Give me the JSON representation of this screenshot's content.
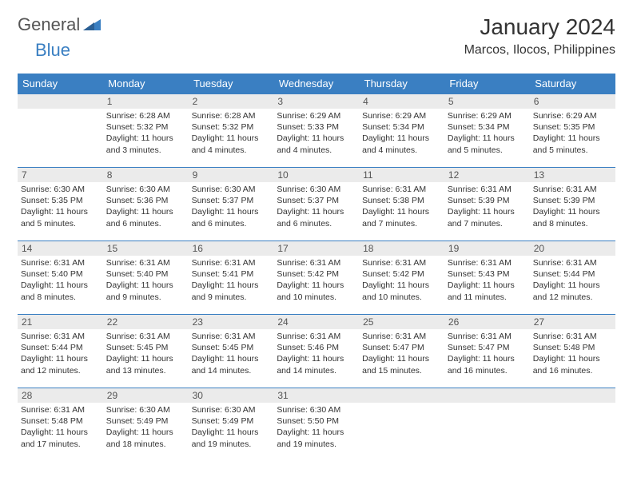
{
  "brand": {
    "part1": "General",
    "part2": "Blue"
  },
  "title": "January 2024",
  "location": "Marcos, Ilocos, Philippines",
  "day_headers": [
    "Sunday",
    "Monday",
    "Tuesday",
    "Wednesday",
    "Thursday",
    "Friday",
    "Saturday"
  ],
  "colors": {
    "header_bg": "#3a7fc2",
    "daynum_bg": "#ebebeb",
    "border": "#3a7fc2"
  },
  "weeks": [
    [
      {
        "n": "",
        "sunrise": "",
        "sunset": "",
        "daylight": ""
      },
      {
        "n": "1",
        "sunrise": "Sunrise: 6:28 AM",
        "sunset": "Sunset: 5:32 PM",
        "daylight": "Daylight: 11 hours and 3 minutes."
      },
      {
        "n": "2",
        "sunrise": "Sunrise: 6:28 AM",
        "sunset": "Sunset: 5:32 PM",
        "daylight": "Daylight: 11 hours and 4 minutes."
      },
      {
        "n": "3",
        "sunrise": "Sunrise: 6:29 AM",
        "sunset": "Sunset: 5:33 PM",
        "daylight": "Daylight: 11 hours and 4 minutes."
      },
      {
        "n": "4",
        "sunrise": "Sunrise: 6:29 AM",
        "sunset": "Sunset: 5:34 PM",
        "daylight": "Daylight: 11 hours and 4 minutes."
      },
      {
        "n": "5",
        "sunrise": "Sunrise: 6:29 AM",
        "sunset": "Sunset: 5:34 PM",
        "daylight": "Daylight: 11 hours and 5 minutes."
      },
      {
        "n": "6",
        "sunrise": "Sunrise: 6:29 AM",
        "sunset": "Sunset: 5:35 PM",
        "daylight": "Daylight: 11 hours and 5 minutes."
      }
    ],
    [
      {
        "n": "7",
        "sunrise": "Sunrise: 6:30 AM",
        "sunset": "Sunset: 5:35 PM",
        "daylight": "Daylight: 11 hours and 5 minutes."
      },
      {
        "n": "8",
        "sunrise": "Sunrise: 6:30 AM",
        "sunset": "Sunset: 5:36 PM",
        "daylight": "Daylight: 11 hours and 6 minutes."
      },
      {
        "n": "9",
        "sunrise": "Sunrise: 6:30 AM",
        "sunset": "Sunset: 5:37 PM",
        "daylight": "Daylight: 11 hours and 6 minutes."
      },
      {
        "n": "10",
        "sunrise": "Sunrise: 6:30 AM",
        "sunset": "Sunset: 5:37 PM",
        "daylight": "Daylight: 11 hours and 6 minutes."
      },
      {
        "n": "11",
        "sunrise": "Sunrise: 6:31 AM",
        "sunset": "Sunset: 5:38 PM",
        "daylight": "Daylight: 11 hours and 7 minutes."
      },
      {
        "n": "12",
        "sunrise": "Sunrise: 6:31 AM",
        "sunset": "Sunset: 5:39 PM",
        "daylight": "Daylight: 11 hours and 7 minutes."
      },
      {
        "n": "13",
        "sunrise": "Sunrise: 6:31 AM",
        "sunset": "Sunset: 5:39 PM",
        "daylight": "Daylight: 11 hours and 8 minutes."
      }
    ],
    [
      {
        "n": "14",
        "sunrise": "Sunrise: 6:31 AM",
        "sunset": "Sunset: 5:40 PM",
        "daylight": "Daylight: 11 hours and 8 minutes."
      },
      {
        "n": "15",
        "sunrise": "Sunrise: 6:31 AM",
        "sunset": "Sunset: 5:40 PM",
        "daylight": "Daylight: 11 hours and 9 minutes."
      },
      {
        "n": "16",
        "sunrise": "Sunrise: 6:31 AM",
        "sunset": "Sunset: 5:41 PM",
        "daylight": "Daylight: 11 hours and 9 minutes."
      },
      {
        "n": "17",
        "sunrise": "Sunrise: 6:31 AM",
        "sunset": "Sunset: 5:42 PM",
        "daylight": "Daylight: 11 hours and 10 minutes."
      },
      {
        "n": "18",
        "sunrise": "Sunrise: 6:31 AM",
        "sunset": "Sunset: 5:42 PM",
        "daylight": "Daylight: 11 hours and 10 minutes."
      },
      {
        "n": "19",
        "sunrise": "Sunrise: 6:31 AM",
        "sunset": "Sunset: 5:43 PM",
        "daylight": "Daylight: 11 hours and 11 minutes."
      },
      {
        "n": "20",
        "sunrise": "Sunrise: 6:31 AM",
        "sunset": "Sunset: 5:44 PM",
        "daylight": "Daylight: 11 hours and 12 minutes."
      }
    ],
    [
      {
        "n": "21",
        "sunrise": "Sunrise: 6:31 AM",
        "sunset": "Sunset: 5:44 PM",
        "daylight": "Daylight: 11 hours and 12 minutes."
      },
      {
        "n": "22",
        "sunrise": "Sunrise: 6:31 AM",
        "sunset": "Sunset: 5:45 PM",
        "daylight": "Daylight: 11 hours and 13 minutes."
      },
      {
        "n": "23",
        "sunrise": "Sunrise: 6:31 AM",
        "sunset": "Sunset: 5:45 PM",
        "daylight": "Daylight: 11 hours and 14 minutes."
      },
      {
        "n": "24",
        "sunrise": "Sunrise: 6:31 AM",
        "sunset": "Sunset: 5:46 PM",
        "daylight": "Daylight: 11 hours and 14 minutes."
      },
      {
        "n": "25",
        "sunrise": "Sunrise: 6:31 AM",
        "sunset": "Sunset: 5:47 PM",
        "daylight": "Daylight: 11 hours and 15 minutes."
      },
      {
        "n": "26",
        "sunrise": "Sunrise: 6:31 AM",
        "sunset": "Sunset: 5:47 PM",
        "daylight": "Daylight: 11 hours and 16 minutes."
      },
      {
        "n": "27",
        "sunrise": "Sunrise: 6:31 AM",
        "sunset": "Sunset: 5:48 PM",
        "daylight": "Daylight: 11 hours and 16 minutes."
      }
    ],
    [
      {
        "n": "28",
        "sunrise": "Sunrise: 6:31 AM",
        "sunset": "Sunset: 5:48 PM",
        "daylight": "Daylight: 11 hours and 17 minutes."
      },
      {
        "n": "29",
        "sunrise": "Sunrise: 6:30 AM",
        "sunset": "Sunset: 5:49 PM",
        "daylight": "Daylight: 11 hours and 18 minutes."
      },
      {
        "n": "30",
        "sunrise": "Sunrise: 6:30 AM",
        "sunset": "Sunset: 5:49 PM",
        "daylight": "Daylight: 11 hours and 19 minutes."
      },
      {
        "n": "31",
        "sunrise": "Sunrise: 6:30 AM",
        "sunset": "Sunset: 5:50 PM",
        "daylight": "Daylight: 11 hours and 19 minutes."
      },
      {
        "n": "",
        "sunrise": "",
        "sunset": "",
        "daylight": ""
      },
      {
        "n": "",
        "sunrise": "",
        "sunset": "",
        "daylight": ""
      },
      {
        "n": "",
        "sunrise": "",
        "sunset": "",
        "daylight": ""
      }
    ]
  ]
}
